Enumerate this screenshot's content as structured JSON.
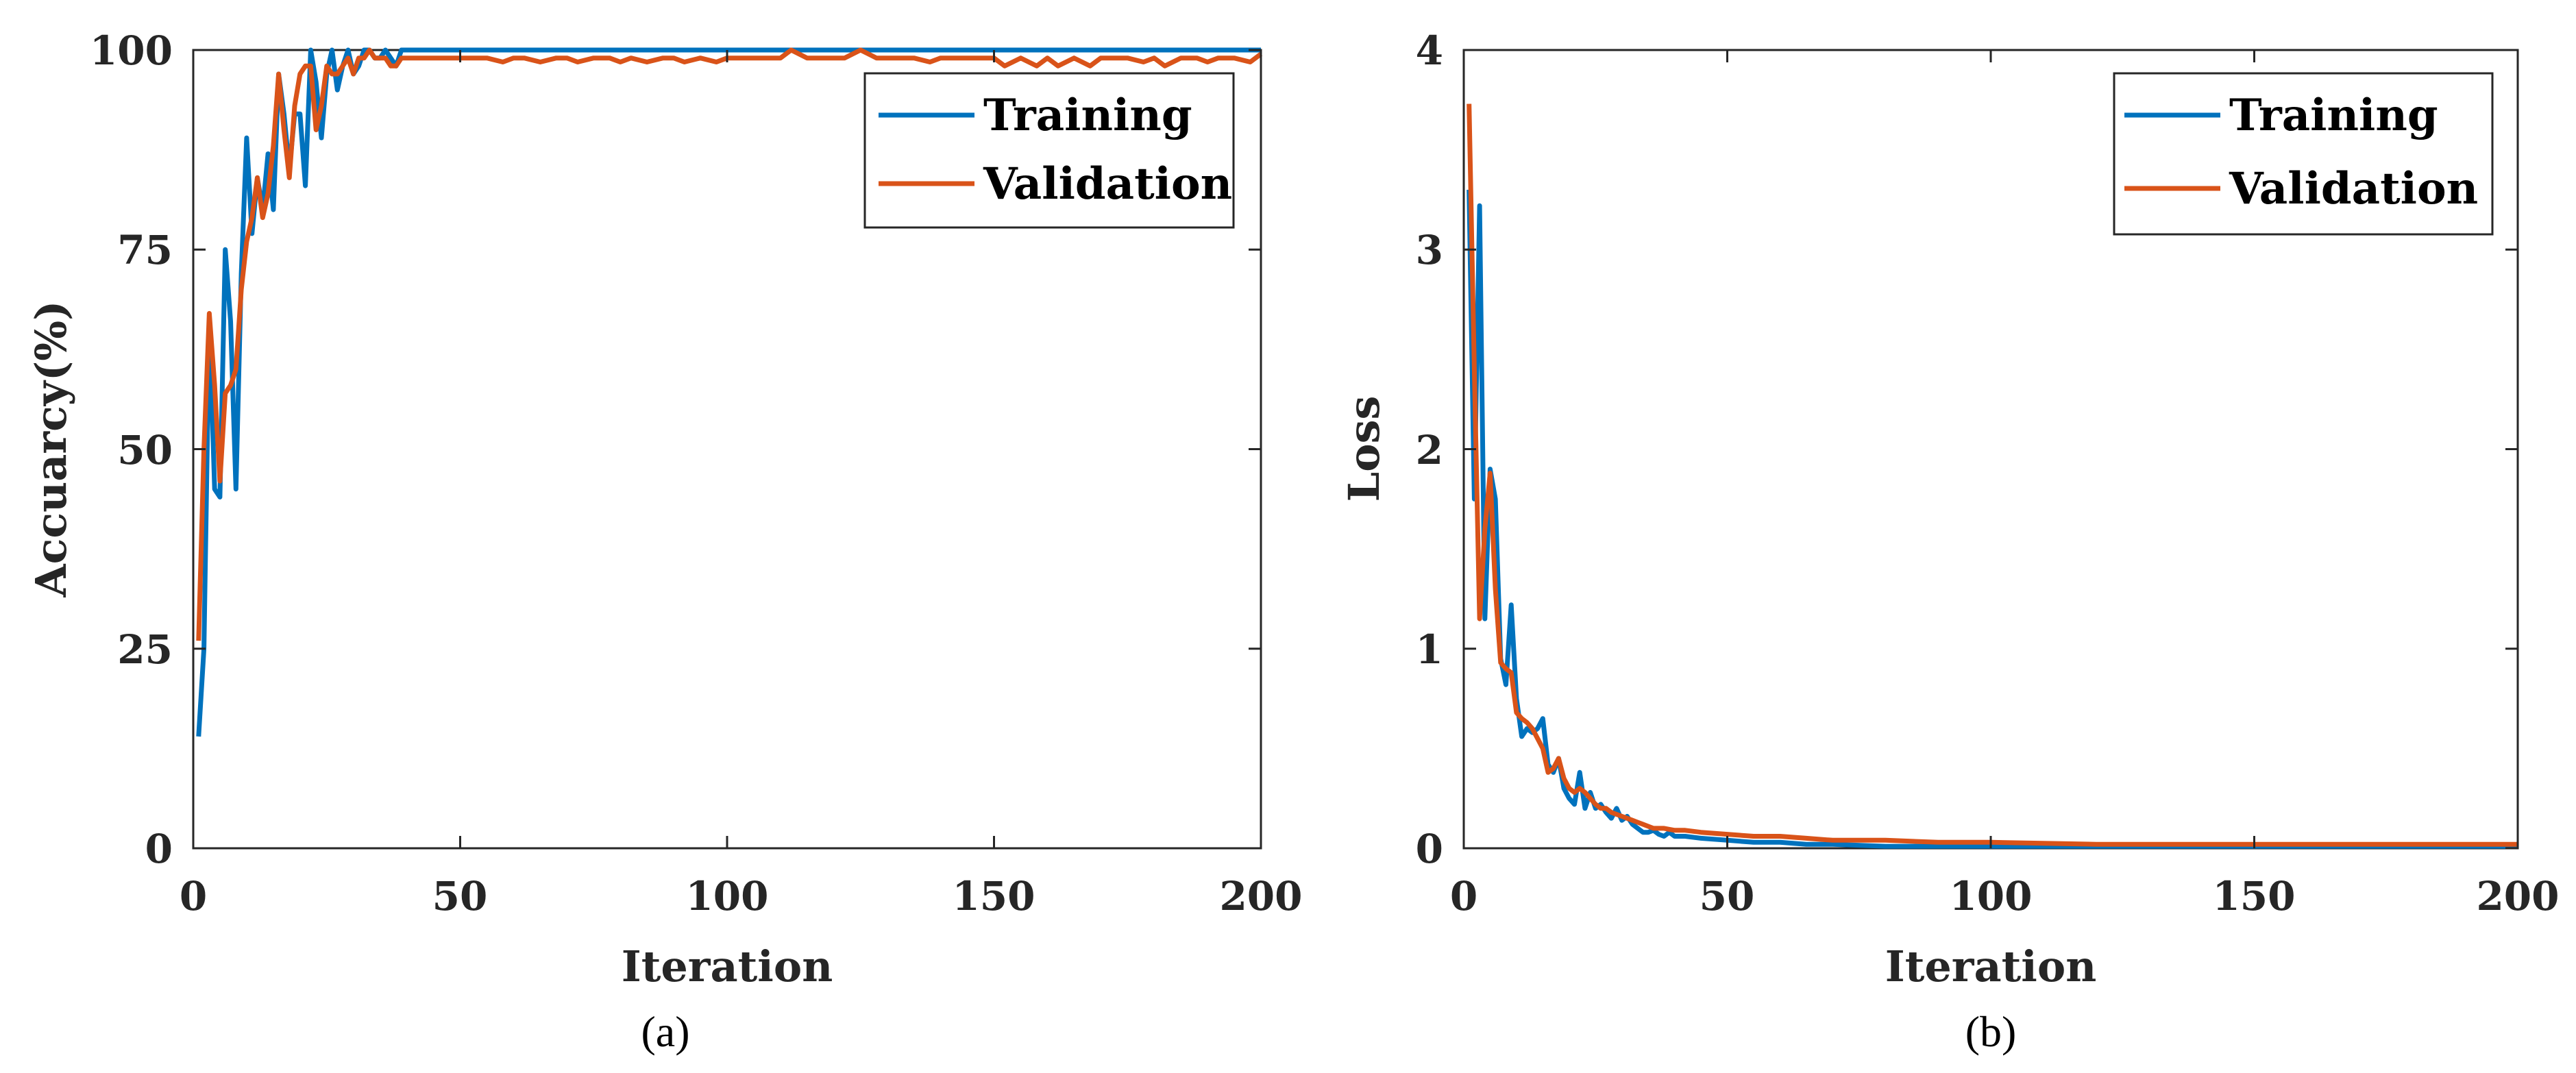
{
  "colors": {
    "training": "#0072BD",
    "validation": "#D95319",
    "axes": "#262626"
  },
  "chart_data": [
    {
      "type": "line",
      "panel": "a",
      "caption": "(a)",
      "xlabel": "Iteration",
      "ylabel": "Accuarcy(%)",
      "xlim": [
        0,
        200
      ],
      "ylim": [
        0,
        100
      ],
      "xticks": [
        "0",
        "50",
        "100",
        "150",
        "200"
      ],
      "xtick_values": [
        0,
        50,
        100,
        150,
        200
      ],
      "yticks": [
        "0",
        "25",
        "50",
        "75",
        "100"
      ],
      "ytick_values": [
        0,
        25,
        50,
        75,
        100
      ],
      "legend": {
        "location": "top-right",
        "entries": [
          "Training",
          "Validation"
        ]
      },
      "series": [
        {
          "name": "Training",
          "color_key": "training",
          "x": [
            1,
            2,
            3,
            4,
            5,
            6,
            7,
            8,
            9,
            10,
            11,
            12,
            13,
            14,
            15,
            16,
            17,
            18,
            19,
            20,
            21,
            22,
            23,
            24,
            25,
            26,
            27,
            28,
            29,
            30,
            31,
            32,
            33,
            34,
            35,
            36,
            37,
            38,
            39,
            40,
            41,
            42,
            45,
            50,
            60,
            80,
            100,
            120,
            140,
            160,
            180,
            200
          ],
          "y": [
            14,
            25,
            66,
            45,
            44,
            75,
            66,
            45,
            72,
            89,
            77,
            84,
            80,
            87,
            80,
            97,
            92,
            85,
            92,
            92,
            83,
            100,
            96,
            89,
            97,
            100,
            95,
            98,
            100,
            97,
            98,
            100,
            100,
            99,
            99,
            100,
            99,
            98,
            100,
            100,
            100,
            100,
            100,
            100,
            100,
            100,
            100,
            100,
            100,
            100,
            100,
            100
          ]
        },
        {
          "name": "Validation",
          "color_key": "validation",
          "x": [
            1,
            2,
            3,
            4,
            5,
            6,
            7,
            8,
            9,
            10,
            11,
            12,
            13,
            14,
            15,
            16,
            17,
            18,
            19,
            20,
            21,
            22,
            23,
            24,
            25,
            26,
            27,
            28,
            29,
            30,
            31,
            32,
            33,
            34,
            35,
            36,
            37,
            38,
            39,
            40,
            42,
            45,
            50,
            55,
            58,
            60,
            62,
            65,
            68,
            70,
            72,
            75,
            78,
            80,
            82,
            85,
            88,
            90,
            92,
            95,
            98,
            100,
            102,
            105,
            108,
            110,
            112,
            115,
            118,
            120,
            122,
            125,
            128,
            130,
            132,
            135,
            138,
            140,
            142,
            145,
            148,
            150,
            152,
            155,
            158,
            160,
            162,
            165,
            168,
            170,
            172,
            175,
            178,
            180,
            182,
            185,
            188,
            190,
            192,
            195,
            198,
            200
          ],
          "y": [
            26,
            50,
            67,
            58,
            46,
            57,
            58,
            60,
            70,
            76,
            79,
            84,
            79,
            82,
            88,
            97,
            90,
            84,
            93,
            97,
            98,
            98,
            90,
            93,
            98,
            97,
            97,
            98,
            99,
            97,
            99,
            99,
            100,
            99,
            99,
            99,
            98,
            98,
            99,
            99,
            99,
            99,
            99,
            99,
            98.5,
            99,
            99,
            98.5,
            99,
            99,
            98.5,
            99,
            99,
            98.5,
            99,
            98.5,
            99,
            99,
            98.5,
            99,
            98.5,
            99,
            99,
            99,
            99,
            99,
            100,
            99,
            99,
            99,
            99,
            100,
            99,
            99,
            99,
            99,
            98.5,
            99,
            99,
            99,
            99,
            99,
            98,
            99,
            98,
            99,
            98,
            99,
            98,
            99,
            99,
            99,
            98.5,
            99,
            98,
            99,
            99,
            98.5,
            99,
            99,
            98.5,
            99.5
          ]
        }
      ]
    },
    {
      "type": "line",
      "panel": "b",
      "caption": "(b)",
      "xlabel": "Iteration",
      "ylabel": "Loss",
      "xlim": [
        0,
        200
      ],
      "ylim": [
        0,
        4
      ],
      "xticks": [
        "0",
        "50",
        "100",
        "150",
        "200"
      ],
      "xtick_values": [
        0,
        50,
        100,
        150,
        200
      ],
      "yticks": [
        "0",
        "1",
        "2",
        "3",
        "4"
      ],
      "ytick_values": [
        0,
        1,
        2,
        3,
        4
      ],
      "legend": {
        "location": "top-right",
        "entries": [
          "Training",
          "Validation"
        ]
      },
      "series": [
        {
          "name": "Training",
          "color_key": "training",
          "x": [
            1,
            2,
            3,
            4,
            5,
            6,
            7,
            8,
            9,
            10,
            11,
            12,
            13,
            14,
            15,
            16,
            17,
            18,
            19,
            20,
            21,
            22,
            23,
            24,
            25,
            26,
            27,
            28,
            29,
            30,
            31,
            32,
            33,
            34,
            35,
            36,
            37,
            38,
            39,
            40,
            42,
            45,
            50,
            55,
            60,
            65,
            70,
            80,
            90,
            100,
            120,
            150,
            200
          ],
          "y": [
            3.3,
            1.75,
            3.22,
            1.15,
            1.9,
            1.75,
            0.95,
            0.82,
            1.22,
            0.75,
            0.56,
            0.6,
            0.58,
            0.6,
            0.65,
            0.42,
            0.38,
            0.45,
            0.3,
            0.25,
            0.22,
            0.38,
            0.2,
            0.28,
            0.2,
            0.22,
            0.18,
            0.15,
            0.2,
            0.14,
            0.16,
            0.12,
            0.1,
            0.08,
            0.08,
            0.09,
            0.07,
            0.06,
            0.08,
            0.06,
            0.06,
            0.05,
            0.04,
            0.03,
            0.03,
            0.02,
            0.02,
            0.01,
            0.01,
            0.01,
            0.01,
            0.01,
            0.01
          ]
        },
        {
          "name": "Validation",
          "color_key": "validation",
          "x": [
            1,
            2,
            3,
            4,
            5,
            6,
            7,
            8,
            9,
            10,
            11,
            12,
            13,
            14,
            15,
            16,
            17,
            18,
            19,
            20,
            21,
            22,
            23,
            24,
            25,
            26,
            27,
            28,
            29,
            30,
            31,
            32,
            33,
            34,
            35,
            36,
            38,
            40,
            42,
            45,
            50,
            55,
            60,
            65,
            70,
            80,
            90,
            100,
            120,
            150,
            200
          ],
          "y": [
            3.73,
            2.4,
            1.15,
            1.6,
            1.88,
            1.3,
            0.93,
            0.9,
            0.88,
            0.68,
            0.65,
            0.63,
            0.6,
            0.55,
            0.5,
            0.38,
            0.4,
            0.45,
            0.35,
            0.3,
            0.28,
            0.3,
            0.28,
            0.25,
            0.22,
            0.2,
            0.2,
            0.18,
            0.17,
            0.16,
            0.15,
            0.14,
            0.13,
            0.12,
            0.11,
            0.1,
            0.1,
            0.09,
            0.09,
            0.08,
            0.07,
            0.06,
            0.06,
            0.05,
            0.04,
            0.04,
            0.03,
            0.03,
            0.02,
            0.02,
            0.02
          ]
        }
      ]
    }
  ]
}
